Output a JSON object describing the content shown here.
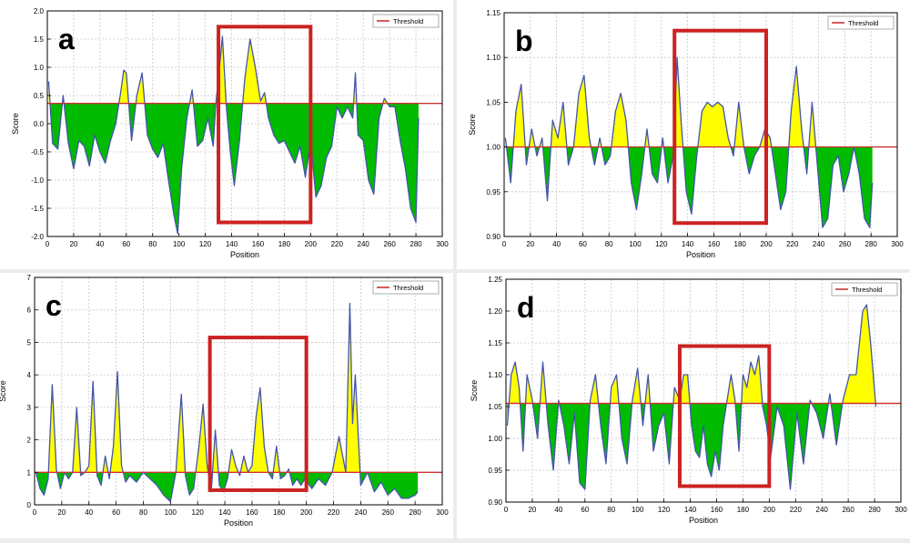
{
  "figure": {
    "background": "#ececec"
  },
  "chart_data": [
    {
      "panel_label": "a",
      "type": "area",
      "xlabel": "Position",
      "ylabel": "Score",
      "xlim": [
        0,
        300
      ],
      "ylim": [
        -2.0,
        2.0
      ],
      "xticks": [
        0,
        20,
        40,
        60,
        80,
        100,
        120,
        140,
        160,
        180,
        200,
        220,
        240,
        260,
        280,
        300
      ],
      "xtick_labels": [
        "0",
        "20",
        "40",
        "60",
        "80",
        "100",
        "120",
        "140",
        "160",
        "180",
        "200",
        "220",
        "240",
        "260",
        "280",
        "300"
      ],
      "yticks": [
        -2.0,
        -1.5,
        -1.0,
        -0.5,
        0.0,
        0.5,
        1.0,
        1.5,
        2.0
      ],
      "ytick_labels": [
        "-2.0",
        "-1.5",
        "-1.0",
        "-0.5",
        "0.0",
        "0.5",
        "1.0",
        "1.5",
        "2.0"
      ],
      "grid": true,
      "legend": {
        "position": "top-right",
        "entries": [
          "Threshold"
        ]
      },
      "threshold": 0.36,
      "highlight": {
        "x": [
          130,
          200
        ],
        "y": [
          -1.75,
          1.72
        ]
      },
      "series": {
        "x": [
          1,
          4,
          8,
          12,
          16,
          20,
          24,
          28,
          32,
          36,
          40,
          44,
          48,
          52,
          56,
          58,
          60,
          64,
          68,
          72,
          76,
          80,
          84,
          88,
          92,
          96,
          99,
          102,
          106,
          110,
          114,
          118,
          122,
          126,
          128,
          131,
          133,
          136,
          139,
          142,
          146,
          150,
          154,
          158,
          162,
          165,
          168,
          172,
          176,
          180,
          184,
          188,
          192,
          196,
          200,
          204,
          208,
          212,
          216,
          220,
          224,
          228,
          232,
          234,
          236,
          240,
          244,
          248,
          252,
          256,
          260,
          264,
          268,
          272,
          276,
          280,
          282
        ],
        "y": [
          0.75,
          -0.35,
          -0.45,
          0.5,
          -0.35,
          -0.8,
          -0.3,
          -0.4,
          -0.75,
          -0.2,
          -0.5,
          -0.7,
          -0.3,
          0.0,
          0.6,
          0.95,
          0.9,
          -0.3,
          0.5,
          0.9,
          -0.2,
          -0.45,
          -0.6,
          -0.35,
          -1.0,
          -1.6,
          -1.95,
          -0.8,
          0.1,
          0.6,
          -0.4,
          -0.3,
          0.1,
          -0.4,
          0.35,
          1.05,
          1.55,
          0.3,
          -0.5,
          -1.1,
          -0.3,
          0.8,
          1.5,
          1.0,
          0.4,
          0.55,
          0.1,
          -0.2,
          -0.35,
          -0.3,
          -0.5,
          -0.7,
          -0.4,
          -0.95,
          -0.3,
          -1.3,
          -1.1,
          -0.6,
          -0.4,
          0.3,
          0.1,
          0.3,
          0.1,
          0.9,
          -0.2,
          -0.3,
          -1.0,
          -1.25,
          0.1,
          0.45,
          0.3,
          0.3,
          -0.3,
          -0.8,
          -1.5,
          -1.75,
          0.1
        ]
      }
    },
    {
      "panel_label": "b",
      "type": "area",
      "xlabel": "Position",
      "ylabel": "Score",
      "xlim": [
        0,
        300
      ],
      "ylim": [
        0.9,
        1.15
      ],
      "xticks": [
        0,
        20,
        40,
        60,
        80,
        100,
        120,
        140,
        160,
        180,
        200,
        220,
        240,
        260,
        280,
        300
      ],
      "xtick_labels": [
        "0",
        "20",
        "40",
        "60",
        "80",
        "100",
        "120",
        "140",
        "160",
        "180",
        "200",
        "220",
        "240",
        "260",
        "280",
        "300"
      ],
      "yticks": [
        0.9,
        0.95,
        1.0,
        1.05,
        1.1,
        1.15
      ],
      "ytick_labels": [
        "0.90",
        "0.95",
        "1.00",
        "1.05",
        "1.10",
        "1.15"
      ],
      "grid": true,
      "legend": {
        "position": "top-right",
        "entries": [
          "Threshold"
        ]
      },
      "threshold": 1.0,
      "highlight": {
        "x": [
          130,
          200
        ],
        "y": [
          0.915,
          1.13
        ]
      },
      "series": {
        "x": [
          1,
          5,
          9,
          13,
          17,
          21,
          25,
          29,
          33,
          37,
          41,
          45,
          49,
          53,
          57,
          61,
          65,
          69,
          73,
          77,
          81,
          85,
          89,
          93,
          97,
          101,
          105,
          109,
          113,
          117,
          121,
          125,
          129,
          132,
          135,
          139,
          143,
          147,
          151,
          155,
          159,
          163,
          167,
          171,
          175,
          179,
          183,
          187,
          191,
          195,
          199,
          203,
          207,
          211,
          215,
          219,
          223,
          227,
          231,
          235,
          239,
          243,
          247,
          251,
          255,
          259,
          263,
          267,
          271,
          275,
          279,
          281
        ],
        "y": [
          1.01,
          0.96,
          1.04,
          1.07,
          0.98,
          1.02,
          0.99,
          1.01,
          0.94,
          1.03,
          1.01,
          1.05,
          0.98,
          1.0,
          1.06,
          1.08,
          1.01,
          0.98,
          1.01,
          0.98,
          0.99,
          1.04,
          1.06,
          1.03,
          0.96,
          0.93,
          0.97,
          1.02,
          0.97,
          0.96,
          1.01,
          0.96,
          0.99,
          1.1,
          1.03,
          0.95,
          0.925,
          0.99,
          1.04,
          1.05,
          1.045,
          1.05,
          1.045,
          1.01,
          0.99,
          1.05,
          1.0,
          0.97,
          0.99,
          1.0,
          1.02,
          1.01,
          0.97,
          0.93,
          0.95,
          1.04,
          1.09,
          1.02,
          0.97,
          1.05,
          0.98,
          0.91,
          0.92,
          0.98,
          0.99,
          0.95,
          0.97,
          1.0,
          0.97,
          0.92,
          0.91,
          0.96
        ]
      }
    },
    {
      "panel_label": "c",
      "type": "area",
      "xlabel": "Position",
      "ylabel": "Score",
      "xlim": [
        0,
        300
      ],
      "ylim": [
        0,
        7
      ],
      "xticks": [
        0,
        20,
        40,
        60,
        80,
        100,
        120,
        140,
        160,
        180,
        200,
        220,
        240,
        260,
        280,
        300
      ],
      "xtick_labels": [
        "0",
        "20",
        "40",
        "60",
        "80",
        "100",
        "120",
        "140",
        "160",
        "180",
        "200",
        "220",
        "240",
        "260",
        "280",
        "300"
      ],
      "yticks": [
        0,
        1,
        2,
        3,
        4,
        5,
        6,
        7
      ],
      "ytick_labels": [
        "0",
        "1",
        "2",
        "3",
        "4",
        "5",
        "6",
        "7"
      ],
      "grid": true,
      "legend": {
        "position": "top-right",
        "entries": [
          "Threshold"
        ]
      },
      "threshold": 1.0,
      "highlight": {
        "x": [
          129,
          200
        ],
        "y": [
          0.45,
          5.15
        ]
      },
      "series": {
        "x": [
          1,
          4,
          7,
          10,
          13,
          16,
          19,
          22,
          25,
          28,
          31,
          34,
          37,
          40,
          43,
          46,
          49,
          52,
          55,
          58,
          61,
          64,
          67,
          70,
          75,
          80,
          85,
          90,
          95,
          100,
          104,
          108,
          111,
          114,
          117,
          121,
          124,
          127,
          130,
          133,
          136,
          139,
          142,
          145,
          148,
          151,
          154,
          157,
          160,
          163,
          166,
          169,
          172,
          175,
          178,
          181,
          184,
          187,
          190,
          193,
          196,
          199,
          204,
          209,
          214,
          219,
          224,
          229,
          232,
          234,
          236,
          240,
          245,
          250,
          255,
          260,
          265,
          270,
          275,
          280,
          282
        ],
        "y": [
          1.0,
          0.5,
          0.3,
          0.8,
          3.7,
          1.1,
          0.5,
          1.0,
          0.8,
          1.0,
          3.0,
          0.9,
          1.0,
          1.2,
          3.8,
          0.9,
          0.6,
          1.5,
          0.8,
          1.8,
          4.1,
          1.2,
          0.7,
          0.9,
          0.7,
          1.0,
          0.8,
          0.6,
          0.3,
          0.1,
          1.0,
          3.4,
          0.9,
          0.3,
          0.5,
          1.8,
          3.1,
          1.2,
          0.4,
          2.3,
          0.6,
          0.4,
          0.8,
          1.7,
          1.2,
          0.9,
          1.5,
          1.0,
          1.2,
          2.7,
          3.6,
          1.8,
          1.0,
          0.8,
          1.8,
          0.8,
          0.9,
          1.1,
          0.6,
          0.8,
          0.6,
          0.8,
          0.5,
          0.8,
          0.6,
          1.0,
          2.1,
          1.0,
          6.2,
          2.5,
          4.0,
          0.6,
          1.0,
          0.4,
          0.7,
          0.3,
          0.5,
          0.2,
          0.2,
          0.3,
          0.4
        ]
      }
    },
    {
      "panel_label": "d",
      "type": "area",
      "xlabel": "Position",
      "ylabel": "Score",
      "xlim": [
        0,
        300
      ],
      "ylim": [
        0.9,
        1.25
      ],
      "xticks": [
        0,
        20,
        40,
        60,
        80,
        100,
        120,
        140,
        160,
        180,
        200,
        220,
        240,
        260,
        280,
        300
      ],
      "xtick_labels": [
        "0",
        "20",
        "40",
        "60",
        "80",
        "100",
        "120",
        "140",
        "160",
        "180",
        "200",
        "220",
        "240",
        "260",
        "280",
        "300"
      ],
      "yticks": [
        0.9,
        0.95,
        1.0,
        1.05,
        1.1,
        1.15,
        1.2,
        1.25
      ],
      "ytick_labels": [
        "0.90",
        "0.95",
        "1.00",
        "1.05",
        "1.10",
        "1.15",
        "1.20",
        "1.25"
      ],
      "grid": true,
      "legend": {
        "position": "top-right",
        "entries": [
          "Threshold"
        ]
      },
      "threshold": 1.055,
      "highlight": {
        "x": [
          132,
          200
        ],
        "y": [
          0.925,
          1.145
        ]
      },
      "series": {
        "x": [
          1,
          4,
          7,
          10,
          13,
          16,
          20,
          24,
          28,
          32,
          36,
          40,
          44,
          48,
          52,
          56,
          60,
          64,
          68,
          72,
          76,
          80,
          84,
          88,
          92,
          96,
          100,
          104,
          108,
          112,
          116,
          120,
          124,
          128,
          132,
          135,
          138,
          141,
          144,
          147,
          150,
          153,
          156,
          159,
          162,
          165,
          168,
          171,
          174,
          177,
          180,
          183,
          186,
          189,
          192,
          195,
          198,
          201,
          206,
          211,
          216,
          221,
          226,
          231,
          236,
          241,
          246,
          251,
          256,
          261,
          266,
          271,
          274,
          277,
          281
        ],
        "y": [
          1.02,
          1.1,
          1.12,
          1.08,
          0.98,
          1.1,
          1.06,
          1.0,
          1.12,
          1.02,
          0.95,
          1.06,
          1.02,
          0.96,
          1.04,
          0.93,
          0.92,
          1.06,
          1.1,
          1.02,
          0.96,
          1.08,
          1.1,
          1.0,
          0.96,
          1.06,
          1.11,
          1.02,
          1.1,
          0.98,
          1.02,
          1.04,
          0.96,
          1.08,
          1.06,
          1.1,
          1.1,
          1.02,
          0.98,
          0.97,
          1.02,
          0.96,
          0.94,
          0.98,
          0.95,
          1.02,
          1.06,
          1.1,
          1.06,
          0.98,
          1.1,
          1.08,
          1.12,
          1.1,
          1.13,
          1.05,
          1.02,
          0.97,
          1.05,
          1.02,
          0.92,
          1.04,
          0.96,
          1.06,
          1.04,
          1.0,
          1.07,
          0.99,
          1.06,
          1.1,
          1.1,
          1.2,
          1.21,
          1.15,
          1.05
        ]
      }
    }
  ],
  "colors": {
    "above_fill": "#ffff00",
    "below_fill": "#00bb00",
    "line": "#4455aa",
    "threshold": "#cc3333",
    "highlight": "#cc2222",
    "grid": "#c8c8c8",
    "axes": "#000000"
  }
}
